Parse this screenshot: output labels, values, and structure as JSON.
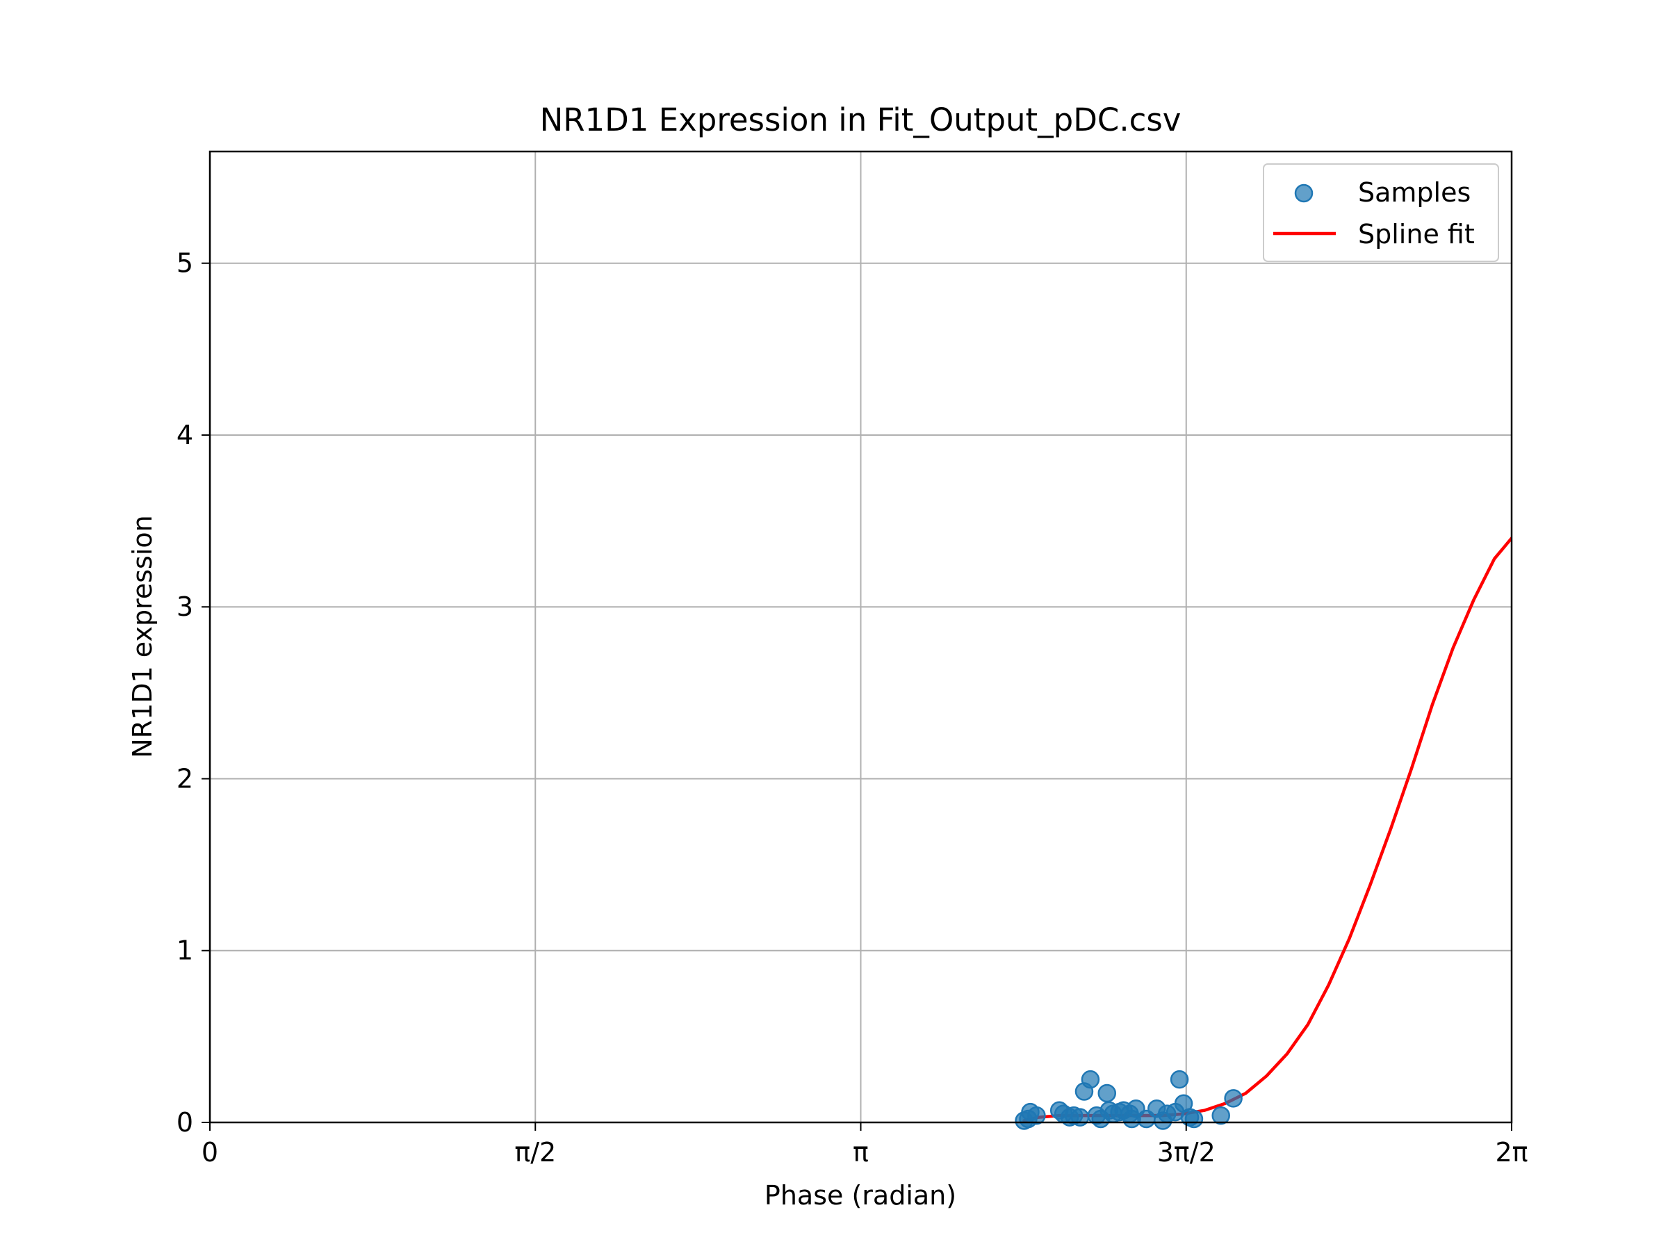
{
  "chart_data": {
    "type": "scatter",
    "title": "NR1D1 Expression in Fit_Output_pDC.csv",
    "xlabel": "Phase (radian)",
    "ylabel": "NR1D1 expression",
    "xlim": [
      0,
      6.2832
    ],
    "ylim": [
      0,
      5.65
    ],
    "x_ticks": [
      {
        "value": 0,
        "label": "0"
      },
      {
        "value": 1.5708,
        "label": "π/2"
      },
      {
        "value": 3.1416,
        "label": "π"
      },
      {
        "value": 4.7124,
        "label": "3π/2"
      },
      {
        "value": 6.2832,
        "label": "2π"
      }
    ],
    "y_ticks": [
      {
        "value": 0,
        "label": "0"
      },
      {
        "value": 1,
        "label": "1"
      },
      {
        "value": 2,
        "label": "2"
      },
      {
        "value": 3,
        "label": "3"
      },
      {
        "value": 4,
        "label": "4"
      },
      {
        "value": 5,
        "label": "5"
      }
    ],
    "grid": true,
    "legend_position": "top-right",
    "series": [
      {
        "name": "Samples",
        "kind": "scatter",
        "color": "#1f77b4",
        "points": [
          [
            3.93,
            0.01
          ],
          [
            3.96,
            0.06
          ],
          [
            3.99,
            0.04
          ],
          [
            3.95,
            0.02
          ],
          [
            4.1,
            0.07
          ],
          [
            4.12,
            0.05
          ],
          [
            4.15,
            0.03
          ],
          [
            4.17,
            0.04
          ],
          [
            4.2,
            0.03
          ],
          [
            4.22,
            0.18
          ],
          [
            4.25,
            0.25
          ],
          [
            4.28,
            0.04
          ],
          [
            4.3,
            0.02
          ],
          [
            4.33,
            0.17
          ],
          [
            4.34,
            0.07
          ],
          [
            4.36,
            0.05
          ],
          [
            4.39,
            0.06
          ],
          [
            4.41,
            0.07
          ],
          [
            4.44,
            0.05
          ],
          [
            4.47,
            0.08
          ],
          [
            4.52,
            0.02
          ],
          [
            4.57,
            0.08
          ],
          [
            4.62,
            0.05
          ],
          [
            4.66,
            0.06
          ],
          [
            4.68,
            0.25
          ],
          [
            4.7,
            0.11
          ],
          [
            4.73,
            0.03
          ],
          [
            4.75,
            0.02
          ],
          [
            4.88,
            0.04
          ],
          [
            4.94,
            0.14
          ],
          [
            4.45,
            0.02
          ],
          [
            4.6,
            0.01
          ]
        ]
      },
      {
        "name": "Spline fit",
        "kind": "line",
        "color": "#ff0000",
        "points": [
          [
            3.93,
            0.01
          ],
          [
            4.0,
            0.03
          ],
          [
            4.1,
            0.04
          ],
          [
            4.2,
            0.04
          ],
          [
            4.3,
            0.04
          ],
          [
            4.4,
            0.04
          ],
          [
            4.5,
            0.04
          ],
          [
            4.6,
            0.04
          ],
          [
            4.7,
            0.05
          ],
          [
            4.8,
            0.07
          ],
          [
            4.9,
            0.11
          ],
          [
            5.0,
            0.17
          ],
          [
            5.1,
            0.27
          ],
          [
            5.2,
            0.4
          ],
          [
            5.3,
            0.57
          ],
          [
            5.4,
            0.8
          ],
          [
            5.5,
            1.07
          ],
          [
            5.6,
            1.38
          ],
          [
            5.7,
            1.71
          ],
          [
            5.8,
            2.06
          ],
          [
            5.9,
            2.43
          ],
          [
            6.0,
            2.76
          ],
          [
            6.1,
            3.04
          ],
          [
            6.2,
            3.28
          ],
          [
            6.2832,
            3.4
          ]
        ]
      }
    ]
  }
}
